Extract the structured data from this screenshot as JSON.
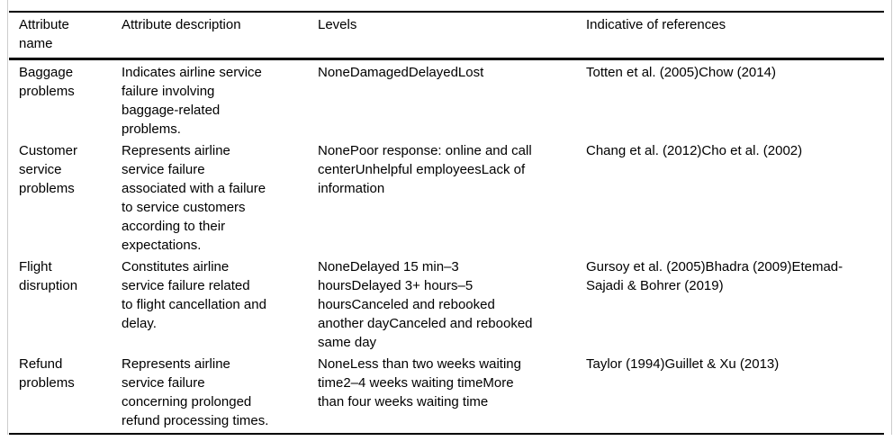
{
  "colors": {
    "rule": "#000000",
    "frame_border": "#cccccc",
    "text": "#000000",
    "background": "#ffffff"
  },
  "table": {
    "columns": [
      {
        "label": "Attribute\nname"
      },
      {
        "label": "Attribute description"
      },
      {
        "label": "Levels"
      },
      {
        "label": "Indicative of references"
      }
    ],
    "rows": [
      {
        "name": "Baggage\nproblems",
        "description": "Indicates airline service\nfailure involving\nbaggage-related\nproblems.",
        "levels": "NoneDamagedDelayedLost",
        "references": "Totten et al. (2005)Chow (2014)"
      },
      {
        "name": "Customer\nservice\nproblems",
        "description": "Represents airline\nservice failure\nassociated with a failure\nto service customers\naccording to their\nexpectations.",
        "levels": "NonePoor response: online and call\ncenterUnhelpful employeesLack of\ninformation",
        "references": "Chang et al. (2012)Cho et al. (2002)"
      },
      {
        "name": "Flight\ndisruption",
        "description": "Constitutes airline\nservice failure related\nto flight cancellation and\ndelay.",
        "levels": "NoneDelayed 15 min–3\nhoursDelayed 3+ hours–5\nhoursCanceled and rebooked\nanother dayCanceled and rebooked\nsame day",
        "references": "Gursoy et al. (2005)Bhadra (2009)Etemad-\nSajadi & Bohrer (2019)"
      },
      {
        "name": "Refund\nproblems",
        "description": "Represents airline\nservice failure\nconcerning prolonged\nrefund processing times.",
        "levels": "NoneLess than two weeks waiting\ntime2–4 weeks waiting timeMore\nthan four weeks waiting time",
        "references": "Taylor (1994)Guillet & Xu (2013)"
      }
    ]
  }
}
